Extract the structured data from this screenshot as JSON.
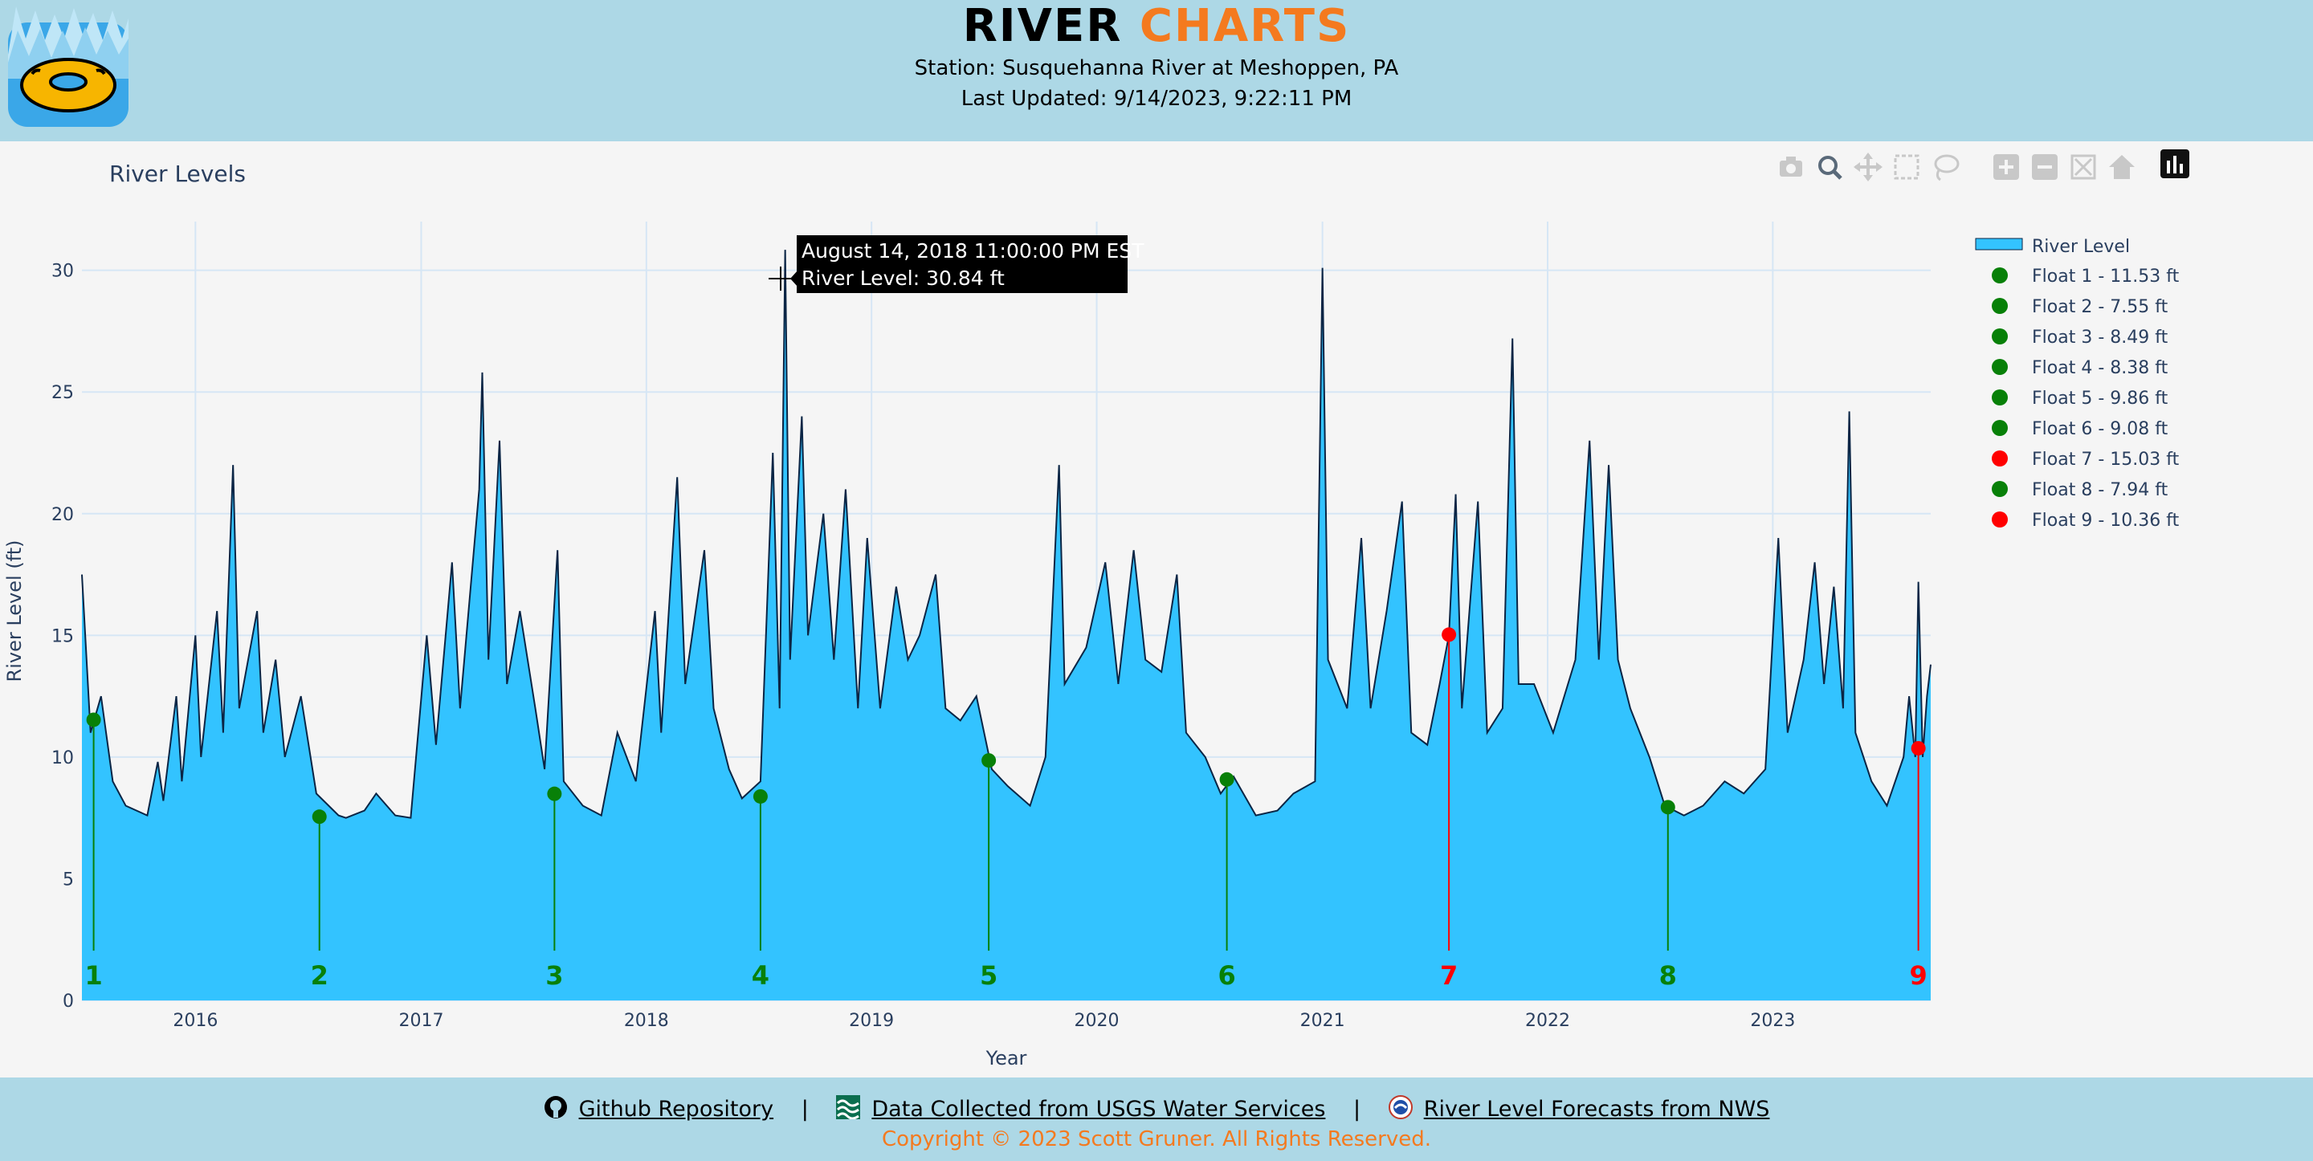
{
  "header": {
    "title_part1": "RIVER",
    "title_part2": "CHARTS",
    "station": "Station: Susquehanna River at Meshoppen, PA",
    "last_updated": "Last Updated: 9/14/2023, 9:22:11 PM"
  },
  "toolbar": {
    "items": [
      "camera-icon",
      "zoom-icon",
      "pan-icon",
      "box-select-icon",
      "lasso-select-icon",
      "zoom-in-icon",
      "zoom-out-icon",
      "autoscale-icon",
      "reset-axes-icon",
      "plotly-logo-icon"
    ]
  },
  "tooltip": {
    "line1": "August 14, 2018 11:00:00 PM EST",
    "line2": "River Level: 30.84 ft"
  },
  "chart_data": {
    "type": "area",
    "title": "River Levels",
    "xlabel": "Year",
    "ylabel": "River Level (ft)",
    "xlim": [
      "2015-07-01",
      "2023-09-14"
    ],
    "ylim": [
      0,
      32
    ],
    "x_tick_labels": [
      "2016",
      "2017",
      "2018",
      "2019",
      "2020",
      "2021",
      "2022",
      "2023"
    ],
    "y_tick_labels": [
      "0",
      "5",
      "10",
      "15",
      "20",
      "25",
      "30"
    ],
    "y_ticks": [
      0,
      5,
      10,
      15,
      20,
      25,
      30
    ],
    "grid": true,
    "legend_placement": "right",
    "colors": {
      "fill": "#33c3ff",
      "line": "#0b2545",
      "ok": "#088008",
      "alert": "#ff0000",
      "grid": "#d6e6f5"
    },
    "series": [
      {
        "name": "River Level",
        "points": [
          [
            "2015-07-01",
            17.5
          ],
          [
            "2015-07-15",
            11.0
          ],
          [
            "2015-08-01",
            12.5
          ],
          [
            "2015-08-20",
            9.0
          ],
          [
            "2015-09-10",
            8.0
          ],
          [
            "2015-10-15",
            7.6
          ],
          [
            "2015-11-01",
            9.8
          ],
          [
            "2015-11-10",
            8.2
          ],
          [
            "2015-12-01",
            12.5
          ],
          [
            "2015-12-10",
            9.0
          ],
          [
            "2016-01-01",
            15.0
          ],
          [
            "2016-01-10",
            10.0
          ],
          [
            "2016-02-05",
            16.0
          ],
          [
            "2016-02-15",
            11.0
          ],
          [
            "2016-03-02",
            22.0
          ],
          [
            "2016-03-12",
            12.0
          ],
          [
            "2016-04-10",
            16.0
          ],
          [
            "2016-04-20",
            11.0
          ],
          [
            "2016-05-10",
            14.0
          ],
          [
            "2016-05-25",
            10.0
          ],
          [
            "2016-06-20",
            12.5
          ],
          [
            "2016-07-15",
            8.5
          ],
          [
            "2016-08-20",
            7.6
          ],
          [
            "2016-09-01",
            7.5
          ],
          [
            "2016-10-01",
            7.8
          ],
          [
            "2016-10-20",
            8.5
          ],
          [
            "2016-11-20",
            7.6
          ],
          [
            "2016-12-15",
            7.5
          ],
          [
            "2017-01-10",
            15.0
          ],
          [
            "2017-01-25",
            10.5
          ],
          [
            "2017-02-20",
            18.0
          ],
          [
            "2017-03-05",
            12.0
          ],
          [
            "2017-04-05",
            21.0
          ],
          [
            "2017-04-10",
            25.8
          ],
          [
            "2017-04-20",
            14.0
          ],
          [
            "2017-05-08",
            23.0
          ],
          [
            "2017-05-20",
            13.0
          ],
          [
            "2017-06-10",
            16.0
          ],
          [
            "2017-07-05",
            12.0
          ],
          [
            "2017-07-20",
            9.5
          ],
          [
            "2017-08-10",
            18.5
          ],
          [
            "2017-08-20",
            9.0
          ],
          [
            "2017-09-20",
            8.0
          ],
          [
            "2017-10-20",
            7.6
          ],
          [
            "2017-11-15",
            11.0
          ],
          [
            "2017-12-15",
            9.0
          ],
          [
            "2018-01-15",
            16.0
          ],
          [
            "2018-01-25",
            11.0
          ],
          [
            "2018-02-20",
            21.5
          ],
          [
            "2018-03-05",
            13.0
          ],
          [
            "2018-04-05",
            18.5
          ],
          [
            "2018-04-20",
            12.0
          ],
          [
            "2018-05-15",
            9.5
          ],
          [
            "2018-06-05",
            8.3
          ],
          [
            "2018-07-05",
            9.0
          ],
          [
            "2018-07-25",
            22.5
          ],
          [
            "2018-08-05",
            12.0
          ],
          [
            "2018-08-14",
            30.84
          ],
          [
            "2018-08-22",
            14.0
          ],
          [
            "2018-09-10",
            24.0
          ],
          [
            "2018-09-20",
            15.0
          ],
          [
            "2018-10-15",
            20.0
          ],
          [
            "2018-11-01",
            14.0
          ],
          [
            "2018-11-20",
            21.0
          ],
          [
            "2018-12-10",
            12.0
          ],
          [
            "2018-12-25",
            19.0
          ],
          [
            "2019-01-15",
            12.0
          ],
          [
            "2019-02-10",
            17.0
          ],
          [
            "2019-03-01",
            14.0
          ],
          [
            "2019-03-20",
            15.0
          ],
          [
            "2019-04-15",
            17.5
          ],
          [
            "2019-05-01",
            12.0
          ],
          [
            "2019-05-25",
            11.5
          ],
          [
            "2019-06-20",
            12.5
          ],
          [
            "2019-07-15",
            9.5
          ],
          [
            "2019-08-10",
            8.8
          ],
          [
            "2019-09-15",
            8.0
          ],
          [
            "2019-10-10",
            10.0
          ],
          [
            "2019-11-01",
            22.0
          ],
          [
            "2019-11-10",
            13.0
          ],
          [
            "2019-12-15",
            14.5
          ],
          [
            "2020-01-15",
            18.0
          ],
          [
            "2020-02-05",
            13.0
          ],
          [
            "2020-03-01",
            18.5
          ],
          [
            "2020-03-20",
            14.0
          ],
          [
            "2020-04-15",
            13.5
          ],
          [
            "2020-05-10",
            17.5
          ],
          [
            "2020-05-25",
            11.0
          ],
          [
            "2020-06-25",
            10.0
          ],
          [
            "2020-07-20",
            8.5
          ],
          [
            "2020-08-10",
            9.2
          ],
          [
            "2020-09-15",
            7.6
          ],
          [
            "2020-10-20",
            7.8
          ],
          [
            "2020-11-15",
            8.5
          ],
          [
            "2020-12-20",
            9.0
          ],
          [
            "2021-01-01",
            30.1
          ],
          [
            "2021-01-10",
            14.0
          ],
          [
            "2021-02-10",
            12.0
          ],
          [
            "2021-03-05",
            19.0
          ],
          [
            "2021-03-20",
            12.0
          ],
          [
            "2021-04-15",
            16.0
          ],
          [
            "2021-05-10",
            20.5
          ],
          [
            "2021-05-25",
            11.0
          ],
          [
            "2021-06-20",
            10.5
          ],
          [
            "2021-07-10",
            13.0
          ],
          [
            "2021-07-25",
            15.0
          ],
          [
            "2021-08-05",
            20.8
          ],
          [
            "2021-08-15",
            12.0
          ],
          [
            "2021-09-10",
            20.5
          ],
          [
            "2021-09-25",
            11.0
          ],
          [
            "2021-10-20",
            12.0
          ],
          [
            "2021-11-05",
            27.2
          ],
          [
            "2021-11-15",
            13.0
          ],
          [
            "2021-12-10",
            13.0
          ],
          [
            "2022-01-10",
            11.0
          ],
          [
            "2022-02-15",
            14.0
          ],
          [
            "2022-03-10",
            23.0
          ],
          [
            "2022-03-25",
            14.0
          ],
          [
            "2022-04-10",
            22.0
          ],
          [
            "2022-04-25",
            14.0
          ],
          [
            "2022-05-15",
            12.0
          ],
          [
            "2022-06-15",
            10.0
          ],
          [
            "2022-07-10",
            8.0
          ],
          [
            "2022-08-10",
            7.6
          ],
          [
            "2022-09-10",
            8.0
          ],
          [
            "2022-10-15",
            9.0
          ],
          [
            "2022-11-15",
            8.5
          ],
          [
            "2022-12-20",
            9.5
          ],
          [
            "2023-01-10",
            19.0
          ],
          [
            "2023-01-25",
            11.0
          ],
          [
            "2023-02-20",
            14.0
          ],
          [
            "2023-03-10",
            18.0
          ],
          [
            "2023-03-25",
            13.0
          ],
          [
            "2023-04-10",
            17.0
          ],
          [
            "2023-04-25",
            12.0
          ],
          [
            "2023-05-05",
            24.2
          ],
          [
            "2023-05-15",
            11.0
          ],
          [
            "2023-06-10",
            9.0
          ],
          [
            "2023-07-05",
            8.0
          ],
          [
            "2023-08-01",
            10.0
          ],
          [
            "2023-08-10",
            12.5
          ],
          [
            "2023-08-20",
            10.0
          ],
          [
            "2023-08-25",
            17.2
          ],
          [
            "2023-09-01",
            10.0
          ],
          [
            "2023-09-08",
            12.5
          ],
          [
            "2023-09-14",
            13.8
          ]
        ]
      }
    ],
    "floats": [
      {
        "label": "1",
        "legend": "Float 1 - 11.53 ft",
        "date": "2015-07-20",
        "value": 11.53,
        "status": "ok"
      },
      {
        "label": "2",
        "legend": "Float 2 - 7.55 ft",
        "date": "2016-07-20",
        "value": 7.55,
        "status": "ok"
      },
      {
        "label": "3",
        "legend": "Float 3 - 8.49 ft",
        "date": "2017-08-05",
        "value": 8.49,
        "status": "ok"
      },
      {
        "label": "4",
        "legend": "Float 4 - 8.38 ft",
        "date": "2018-07-05",
        "value": 8.38,
        "status": "ok"
      },
      {
        "label": "5",
        "legend": "Float 5 - 9.86 ft",
        "date": "2019-07-10",
        "value": 9.86,
        "status": "ok"
      },
      {
        "label": "6",
        "legend": "Float 6 - 9.08 ft",
        "date": "2020-07-30",
        "value": 9.08,
        "status": "ok"
      },
      {
        "label": "7",
        "legend": "Float 7 - 15.03 ft",
        "date": "2021-07-25",
        "value": 15.03,
        "status": "alert"
      },
      {
        "label": "8",
        "legend": "Float 8 - 7.94 ft",
        "date": "2022-07-15",
        "value": 7.94,
        "status": "ok"
      },
      {
        "label": "9",
        "legend": "Float 9 - 10.36 ft",
        "date": "2023-08-25",
        "value": 10.36,
        "status": "alert"
      }
    ]
  },
  "footer": {
    "github": "Github Repository",
    "usgs": "Data Collected from USGS Water Services",
    "nws": "River Level Forecasts from NWS",
    "separator": "|",
    "copyright": "Copyright © 2023 Scott Gruner. All Rights Reserved."
  }
}
